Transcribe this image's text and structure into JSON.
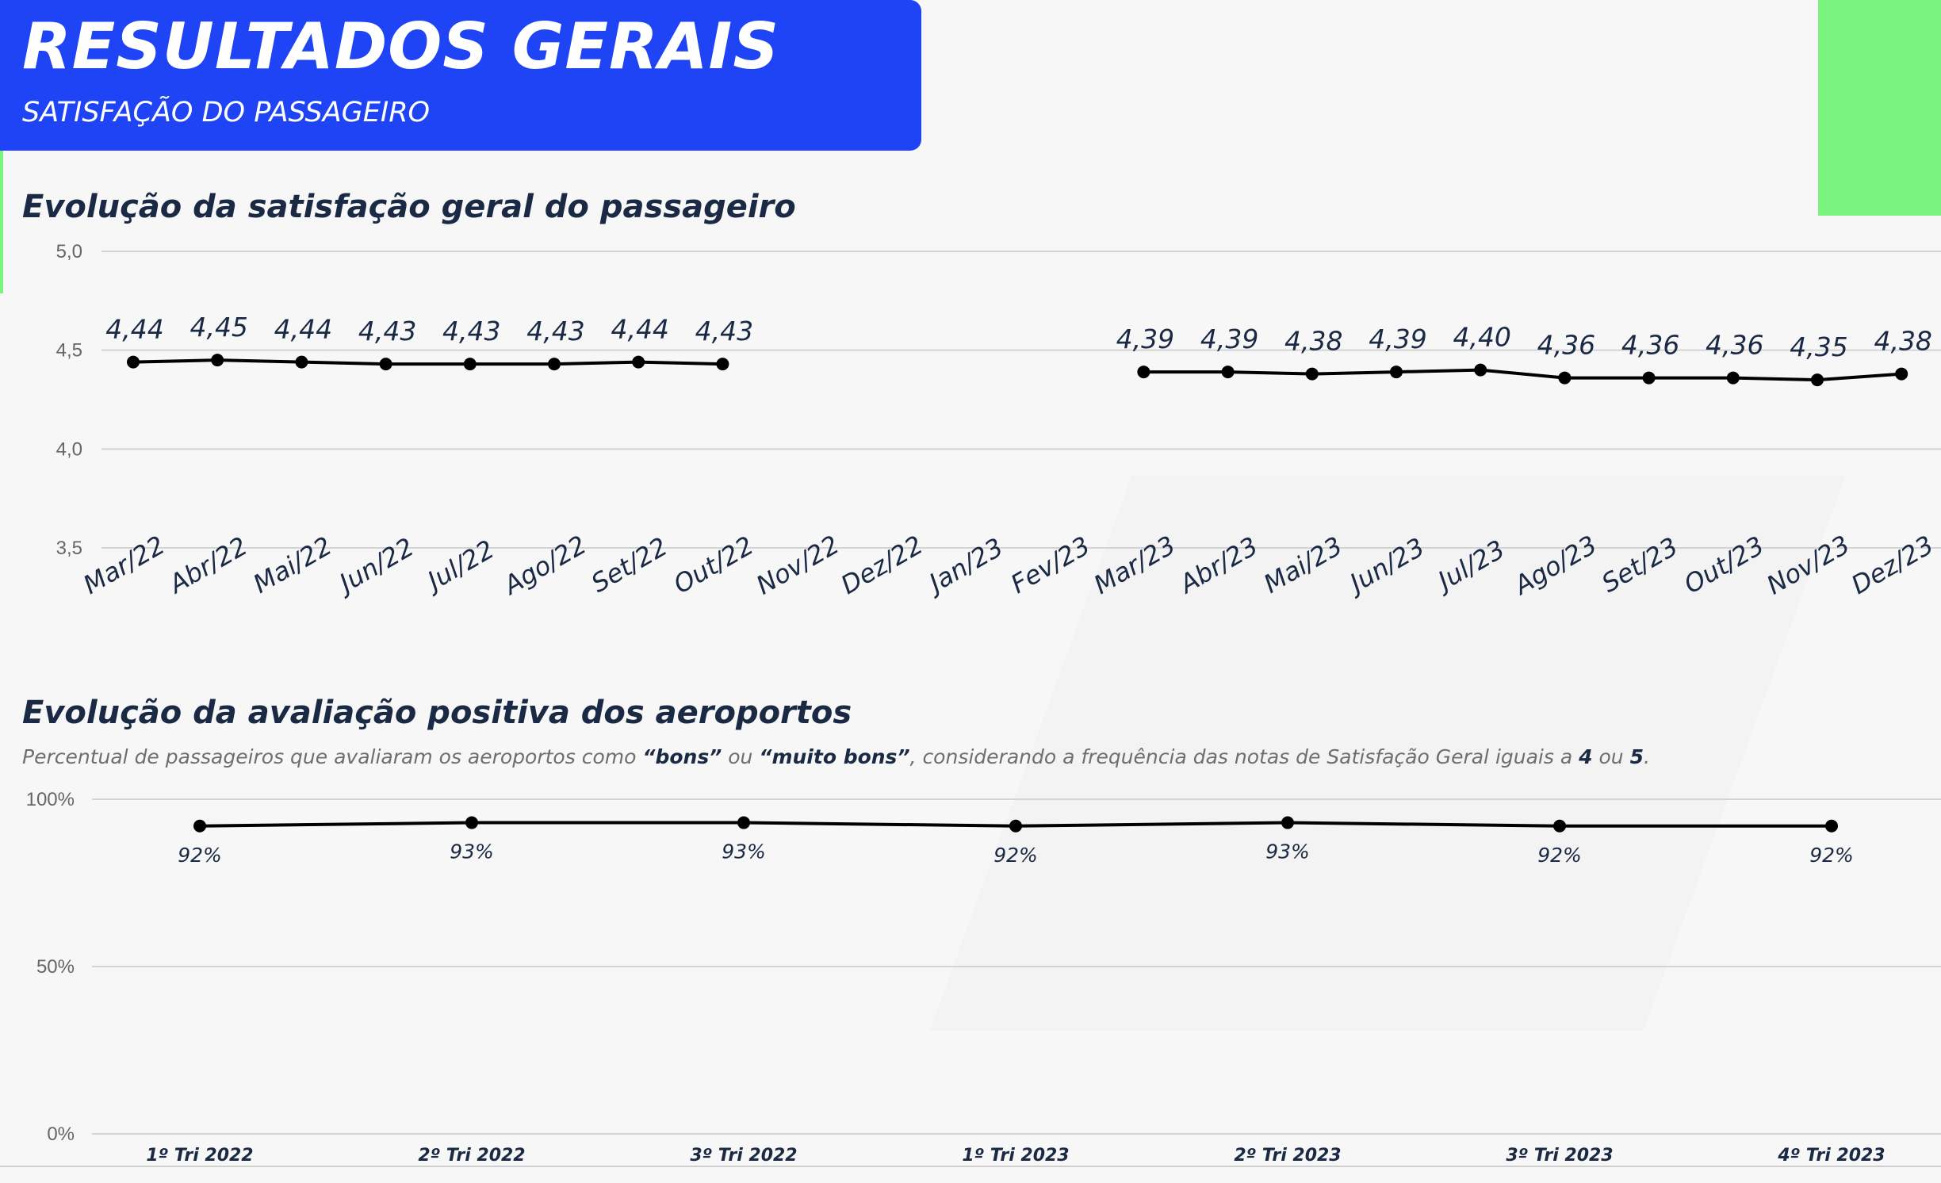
{
  "header": {
    "title": "RESULTADOS GERAIS",
    "subtitle": "SATISFAÇÃO DO PASSAGEIRO"
  },
  "colors": {
    "header_bg": "#1f44f5",
    "accent_green": "#7af47e",
    "line": "#000000",
    "title_text": "#1b2a44"
  },
  "section1": {
    "title": "Evolução da satisfação geral do passageiro"
  },
  "section2": {
    "title": "Evolução da avaliação positiva dos aeroportos",
    "subtitle_parts": [
      "Percentual de passageiros que avaliaram os aeroportos como ",
      "“bons”",
      " ou ",
      "“muito bons”",
      ", considerando a frequência das notas de Satisfação Geral iguais a ",
      "4",
      " ou ",
      "5",
      "."
    ]
  },
  "chart_data": [
    {
      "type": "line",
      "title": "Evolução da satisfação geral do passageiro",
      "categories": [
        "Mar/22",
        "Abr/22",
        "Mai/22",
        "Jun/22",
        "Jul/22",
        "Ago/22",
        "Set/22",
        "Out/22",
        "Nov/22",
        "Dez/22",
        "Jan/23",
        "Fev/23",
        "Mar/23",
        "Abr/23",
        "Mai/23",
        "Jun/23",
        "Jul/23",
        "Ago/23",
        "Set/23",
        "Out/23",
        "Nov/23",
        "Dez/23"
      ],
      "values": [
        4.44,
        4.45,
        4.44,
        4.43,
        4.43,
        4.43,
        4.44,
        4.43,
        null,
        null,
        null,
        null,
        4.39,
        4.39,
        4.38,
        4.39,
        4.4,
        4.36,
        4.36,
        4.36,
        4.35,
        4.38
      ],
      "labels": [
        "4,44",
        "4,45",
        "4,44",
        "4,43",
        "4,43",
        "4,43",
        "4,44",
        "4,43",
        "",
        "",
        "",
        "",
        "4,39",
        "4,39",
        "4,38",
        "4,39",
        "4,40",
        "4,36",
        "4,36",
        "4,36",
        "4,35",
        "4,38"
      ],
      "ylim": [
        3.5,
        5.0
      ],
      "yticks": [
        5.0,
        4.5,
        4.0,
        3.5
      ],
      "ytick_labels": [
        "5,0",
        "4,5",
        "4,0",
        "3,5"
      ],
      "grid": true
    },
    {
      "type": "line",
      "title": "Evolução da avaliação positiva dos aeroportos",
      "categories": [
        "1º Tri 2022",
        "2º Tri 2022",
        "3º Tri 2022",
        "1º Tri 2023",
        "2º Tri 2023",
        "3º Tri 2023",
        "4º Tri 2023"
      ],
      "values": [
        92,
        93,
        93,
        92,
        93,
        92,
        92
      ],
      "labels": [
        "92%",
        "93%",
        "93%",
        "92%",
        "93%",
        "92%",
        "92%"
      ],
      "ylim": [
        0,
        100
      ],
      "yticks": [
        100,
        50,
        0
      ],
      "ytick_labels": [
        "100%",
        "50%",
        "0%"
      ],
      "grid": true
    }
  ]
}
